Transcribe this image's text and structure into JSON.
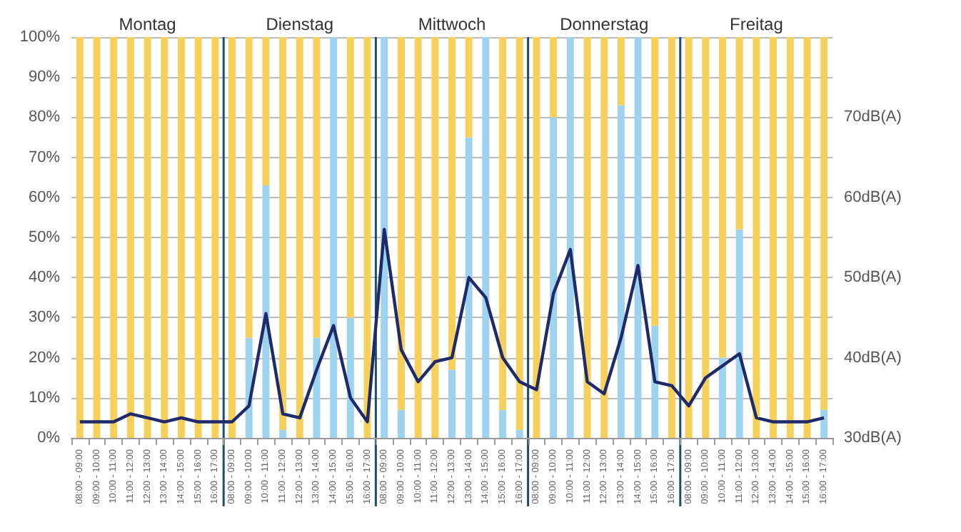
{
  "chart_data": {
    "type": "bar",
    "stacked": true,
    "grid": "y",
    "categories": [
      "08:00 - 09:00",
      "09:00 - 10:00",
      "10:00 - 11:00",
      "11:00 - 12:00",
      "12:00 - 13:00",
      "13:00 - 14:00",
      "14:00 - 15:00",
      "15:00 - 16:00",
      "16:00 - 17:00",
      "08:00 - 09:00",
      "09:00 - 10:00",
      "10:00 - 11:00",
      "11:00 - 12:00",
      "12:00 - 13:00",
      "13:00 - 14:00",
      "14:00 - 15:00",
      "15:00 - 16:00",
      "16:00 - 17:00",
      "08:00 - 09:00",
      "09:00 - 10:00",
      "10:00 - 11:00",
      "11:00 - 12:00",
      "12:00 - 13:00",
      "13:00 - 14:00",
      "14:00 - 15:00",
      "15:00 - 16:00",
      "16:00 - 17:00",
      "08:00 - 09:00",
      "09:00 - 10:00",
      "10:00 - 11:00",
      "11:00 - 12:00",
      "12:00 - 13:00",
      "13:00 - 14:00",
      "14:00 - 15:00",
      "15:00 - 16:00",
      "16:00 - 17:00",
      "08:00 - 09:00",
      "09:00 - 10:00",
      "10:00 - 11:00",
      "11:00 - 12:00",
      "12:00 - 13:00",
      "13:00 - 14:00",
      "14:00 - 15:00",
      "15:00 - 16:00",
      "16:00 - 17:00"
    ],
    "series": [
      {
        "color": "#9dd3ee",
        "values": [
          0,
          0,
          0,
          0,
          0,
          0,
          0,
          0,
          0,
          0,
          25,
          63,
          2,
          0,
          25,
          100,
          30,
          0,
          100,
          7,
          0,
          0,
          17,
          75,
          100,
          7,
          2,
          0,
          80,
          100,
          0,
          0,
          83,
          100,
          28,
          0,
          0,
          0,
          20,
          52,
          0,
          0,
          0,
          0,
          7
        ]
      },
      {
        "color": "#f6d05a",
        "values": [
          100,
          100,
          100,
          100,
          100,
          100,
          100,
          100,
          100,
          100,
          75,
          37,
          98,
          100,
          75,
          0,
          70,
          100,
          0,
          93,
          100,
          100,
          83,
          25,
          0,
          93,
          98,
          100,
          20,
          0,
          100,
          100,
          17,
          0,
          72,
          100,
          100,
          100,
          80,
          48,
          100,
          100,
          100,
          100,
          93
        ]
      },
      {
        "type": "line",
        "axis": "y2",
        "color": "#1f2a6b",
        "values": [
          32,
          32,
          32,
          33,
          32.5,
          32,
          32.5,
          32,
          32,
          32,
          34,
          45.5,
          33,
          32.5,
          38.5,
          44,
          35,
          32,
          56,
          41,
          37,
          39.5,
          40,
          50,
          47.5,
          40,
          37,
          36,
          48,
          53.5,
          37,
          35.5,
          42.5,
          51.5,
          37,
          36.5,
          34,
          37.5,
          39,
          40.5,
          32.5,
          32,
          32,
          32,
          32.5
        ]
      }
    ],
    "ylim": [
      0,
      100
    ],
    "yticks": [
      {
        "value": 0,
        "label": "0%"
      },
      {
        "value": 10,
        "label": "10%"
      },
      {
        "value": 20,
        "label": "20%"
      },
      {
        "value": 30,
        "label": "30%"
      },
      {
        "value": 40,
        "label": "40%"
      },
      {
        "value": 50,
        "label": "50%"
      },
      {
        "value": 60,
        "label": "60%"
      },
      {
        "value": 70,
        "label": "70%"
      },
      {
        "value": 80,
        "label": "80%"
      },
      {
        "value": 90,
        "label": "90%"
      },
      {
        "value": 100,
        "label": "100%"
      }
    ],
    "y2lim": [
      30,
      80
    ],
    "y2ticks": [
      {
        "value": 30,
        "label": "30dB(A)"
      },
      {
        "value": 40,
        "label": "40dB(A)"
      },
      {
        "value": 50,
        "label": "50dB(A)"
      },
      {
        "value": 60,
        "label": "60dB(A)"
      },
      {
        "value": 70,
        "label": "70dB(A)"
      }
    ],
    "annotations": [
      "Montag",
      "Dienstag",
      "Mittwoch",
      "Donnerstag",
      "Freitag"
    ]
  }
}
